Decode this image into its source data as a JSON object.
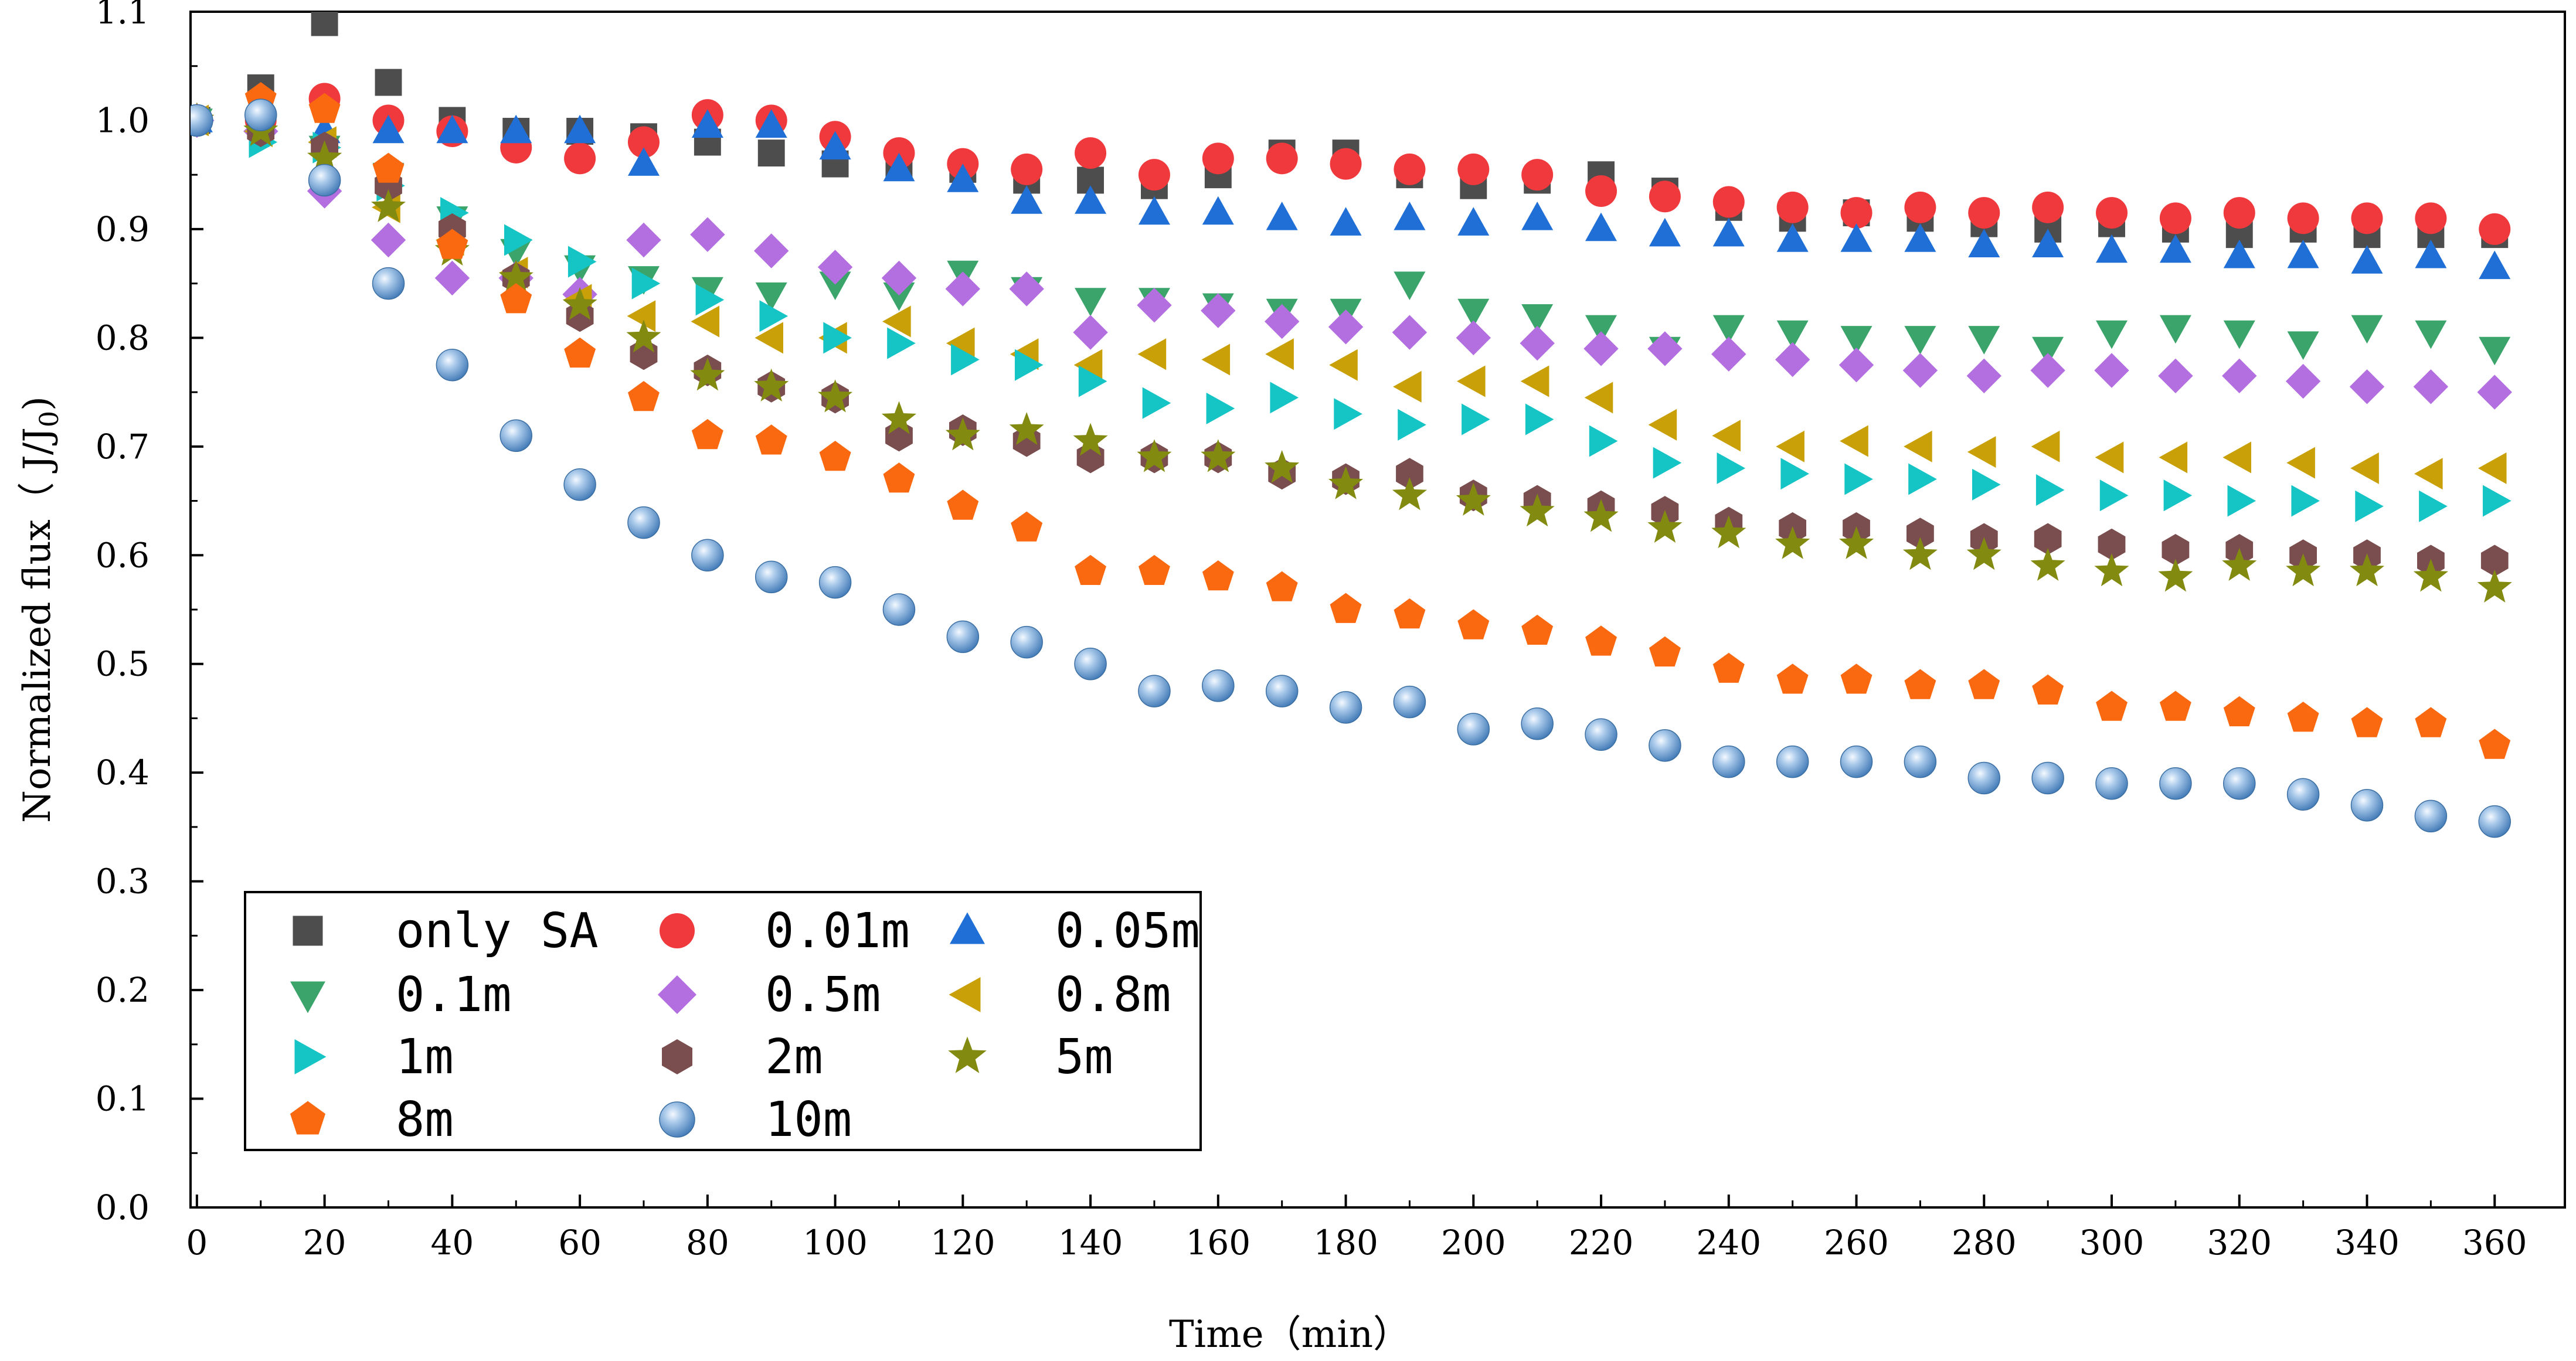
{
  "chart_data": {
    "type": "scatter",
    "xlabel": "Time（min）",
    "ylabel": "Normalized flux（ J/J",
    "ylabel_sub": "0",
    "ylabel_end": ")",
    "xlim": [
      -1,
      371
    ],
    "ylim": [
      0.0,
      1.1
    ],
    "x_ticks": [
      "0",
      "20",
      "40",
      "60",
      "80",
      "100",
      "120",
      "140",
      "160",
      "180",
      "200",
      "220",
      "240",
      "260",
      "280",
      "300",
      "320",
      "340",
      "360"
    ],
    "y_ticks": [
      "0.0",
      "0.1",
      "0.2",
      "0.3",
      "0.4",
      "0.5",
      "0.6",
      "0.7",
      "0.8",
      "0.9",
      "1.0",
      "1.1"
    ],
    "legend_position": "bottom-left",
    "x": [
      0,
      10,
      20,
      30,
      40,
      50,
      60,
      70,
      80,
      90,
      100,
      110,
      120,
      130,
      140,
      150,
      160,
      170,
      180,
      190,
      200,
      210,
      220,
      230,
      240,
      250,
      260,
      270,
      280,
      290,
      300,
      310,
      320,
      330,
      340,
      350,
      360
    ],
    "series": [
      {
        "name": "only SA",
        "marker": "square",
        "color": "#4d4d4d",
        "values": [
          1.0,
          1.03,
          1.09,
          1.035,
          1.0,
          0.99,
          0.99,
          0.985,
          0.98,
          0.97,
          0.96,
          0.96,
          0.955,
          0.945,
          0.945,
          0.94,
          0.95,
          0.97,
          0.97,
          0.95,
          0.94,
          0.945,
          0.95,
          0.935,
          0.92,
          0.91,
          0.915,
          0.91,
          0.905,
          0.9,
          0.905,
          0.9,
          0.895,
          0.9,
          0.895,
          0.895,
          0.895
        ]
      },
      {
        "name": "0.01m",
        "marker": "circle",
        "color": "#f0393d",
        "values": [
          1.0,
          1.0,
          1.02,
          1.0,
          0.99,
          0.975,
          0.965,
          0.98,
          1.005,
          1.0,
          0.985,
          0.97,
          0.96,
          0.955,
          0.97,
          0.95,
          0.965,
          0.965,
          0.96,
          0.955,
          0.955,
          0.95,
          0.935,
          0.93,
          0.925,
          0.92,
          0.915,
          0.92,
          0.915,
          0.92,
          0.915,
          0.91,
          0.915,
          0.91,
          0.91,
          0.91,
          0.9
        ]
      },
      {
        "name": "0.05m",
        "marker": "triangle-up",
        "color": "#1f6fd6",
        "values": [
          1.0,
          1.0,
          0.99,
          0.99,
          0.99,
          0.99,
          0.99,
          0.96,
          0.995,
          0.995,
          0.975,
          0.955,
          0.945,
          0.925,
          0.925,
          0.915,
          0.915,
          0.91,
          0.905,
          0.91,
          0.905,
          0.91,
          0.9,
          0.895,
          0.895,
          0.89,
          0.89,
          0.89,
          0.885,
          0.885,
          0.88,
          0.88,
          0.875,
          0.875,
          0.87,
          0.875,
          0.865
        ]
      },
      {
        "name": "0.1m",
        "marker": "triangle-down",
        "color": "#3aa46a",
        "values": [
          1.0,
          0.99,
          0.975,
          0.95,
          0.91,
          0.88,
          0.865,
          0.855,
          0.845,
          0.84,
          0.85,
          0.84,
          0.86,
          0.845,
          0.835,
          0.835,
          0.83,
          0.825,
          0.825,
          0.85,
          0.825,
          0.82,
          0.81,
          0.79,
          0.81,
          0.805,
          0.8,
          0.8,
          0.8,
          0.79,
          0.805,
          0.81,
          0.805,
          0.795,
          0.81,
          0.805,
          0.79
        ]
      },
      {
        "name": "0.5m",
        "marker": "diamond",
        "color": "#b36ee0",
        "values": [
          1.0,
          0.99,
          0.935,
          0.89,
          0.855,
          0.855,
          0.84,
          0.89,
          0.895,
          0.88,
          0.865,
          0.855,
          0.845,
          0.845,
          0.805,
          0.83,
          0.825,
          0.815,
          0.81,
          0.805,
          0.8,
          0.795,
          0.79,
          0.79,
          0.785,
          0.78,
          0.775,
          0.77,
          0.765,
          0.77,
          0.77,
          0.765,
          0.765,
          0.76,
          0.755,
          0.755,
          0.75
        ]
      },
      {
        "name": "0.8m",
        "marker": "triangle-left",
        "color": "#c9a007",
        "values": [
          1.0,
          0.99,
          0.98,
          0.92,
          0.89,
          0.86,
          0.835,
          0.82,
          0.815,
          0.8,
          0.8,
          0.815,
          0.795,
          0.785,
          0.775,
          0.785,
          0.78,
          0.785,
          0.775,
          0.755,
          0.76,
          0.76,
          0.745,
          0.72,
          0.71,
          0.7,
          0.705,
          0.7,
          0.695,
          0.7,
          0.69,
          0.69,
          0.69,
          0.685,
          0.68,
          0.675,
          0.68
        ]
      },
      {
        "name": "1m",
        "marker": "triangle-right",
        "color": "#15c4c4",
        "values": [
          1.0,
          0.98,
          0.975,
          0.94,
          0.915,
          0.89,
          0.87,
          0.85,
          0.835,
          0.82,
          0.8,
          0.795,
          0.78,
          0.775,
          0.76,
          0.74,
          0.735,
          0.745,
          0.73,
          0.72,
          0.725,
          0.725,
          0.705,
          0.685,
          0.68,
          0.675,
          0.67,
          0.67,
          0.665,
          0.66,
          0.655,
          0.655,
          0.65,
          0.65,
          0.645,
          0.645,
          0.65
        ]
      },
      {
        "name": "2m",
        "marker": "hexagon",
        "color": "#7a4e4e",
        "values": [
          1.0,
          0.99,
          0.975,
          0.94,
          0.9,
          0.855,
          0.82,
          0.785,
          0.77,
          0.755,
          0.745,
          0.71,
          0.715,
          0.705,
          0.69,
          0.69,
          0.69,
          0.675,
          0.67,
          0.675,
          0.655,
          0.65,
          0.645,
          0.64,
          0.63,
          0.625,
          0.625,
          0.62,
          0.615,
          0.615,
          0.61,
          0.605,
          0.605,
          0.6,
          0.6,
          0.595,
          0.595
        ]
      },
      {
        "name": "5m",
        "marker": "star",
        "color": "#828a10",
        "values": [
          1.0,
          0.99,
          0.965,
          0.92,
          0.88,
          0.855,
          0.83,
          0.8,
          0.765,
          0.755,
          0.745,
          0.725,
          0.71,
          0.715,
          0.705,
          0.69,
          0.69,
          0.68,
          0.665,
          0.655,
          0.65,
          0.64,
          0.635,
          0.625,
          0.62,
          0.61,
          0.61,
          0.6,
          0.6,
          0.59,
          0.585,
          0.58,
          0.59,
          0.585,
          0.585,
          0.58,
          0.57
        ]
      },
      {
        "name": "8m",
        "marker": "pentagon",
        "color": "#fa6810",
        "values": [
          1.0,
          1.02,
          1.01,
          0.955,
          0.885,
          0.835,
          0.785,
          0.745,
          0.71,
          0.705,
          0.69,
          0.67,
          0.645,
          0.625,
          0.585,
          0.585,
          0.58,
          0.57,
          0.55,
          0.545,
          0.535,
          0.53,
          0.52,
          0.51,
          0.495,
          0.485,
          0.485,
          0.48,
          0.48,
          0.475,
          0.46,
          0.46,
          0.455,
          0.45,
          0.445,
          0.445,
          0.425
        ]
      },
      {
        "name": "10m",
        "marker": "sphere",
        "color": "#6a9fd1",
        "values": [
          1.0,
          1.005,
          0.945,
          0.85,
          0.775,
          0.71,
          0.665,
          0.63,
          0.6,
          0.58,
          0.575,
          0.55,
          0.525,
          0.52,
          0.5,
          0.475,
          0.48,
          0.475,
          0.46,
          0.465,
          0.44,
          0.445,
          0.435,
          0.425,
          0.41,
          0.41,
          0.41,
          0.41,
          0.395,
          0.395,
          0.39,
          0.39,
          0.39,
          0.38,
          0.37,
          0.36,
          0.355
        ]
      }
    ]
  }
}
